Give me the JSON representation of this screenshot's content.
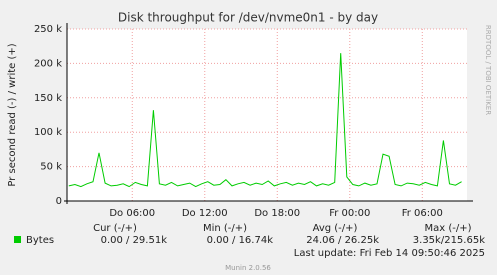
{
  "chart_data": {
    "type": "line",
    "title": "Disk throughput for /dev/nvme0n1 - by day",
    "y_label": "Pr second read (-) / write (+)",
    "side_label": "RRDTOOL / TOBI OETIKER",
    "grid": true,
    "ylim": [
      0,
      250000
    ],
    "yticks": [
      0,
      {
        "value": 50000,
        "label": "50 k"
      },
      {
        "value": 100000,
        "label": "100 k"
      },
      {
        "value": 150000,
        "label": "150 k"
      },
      {
        "value": 200000,
        "label": "200 k"
      },
      {
        "value": 250000,
        "label": "250 k"
      }
    ],
    "xlim": [
      0.6,
      33.7
    ],
    "xticks": [
      {
        "value": 6,
        "label": "Do 06:00"
      },
      {
        "value": 12,
        "label": "Do 12:00"
      },
      {
        "value": 18,
        "label": "Do 18:00"
      },
      {
        "value": 24,
        "label": "Fr 00:00"
      },
      {
        "value": 30,
        "label": "Fr 06:00"
      }
    ],
    "x": [
      0.75,
      1.25,
      1.75,
      2.25,
      2.75,
      3.25,
      3.75,
      4.25,
      4.75,
      5.25,
      5.75,
      6.25,
      6.75,
      7.25,
      7.75,
      8.25,
      8.75,
      9.25,
      9.75,
      10.25,
      10.75,
      11.25,
      11.75,
      12.25,
      12.75,
      13.25,
      13.75,
      14.25,
      14.75,
      15.25,
      15.75,
      16.25,
      16.75,
      17.25,
      17.75,
      18.25,
      18.75,
      19.25,
      19.75,
      20.25,
      20.75,
      21.25,
      21.75,
      22.25,
      22.75,
      23.25,
      23.75,
      24.25,
      24.75,
      25.25,
      25.75,
      26.25,
      26.75,
      27.25,
      27.75,
      28.25,
      28.75,
      29.25,
      29.75,
      30.25,
      30.75,
      31.25,
      31.75,
      32.25,
      32.75,
      33.25
    ],
    "series": [
      {
        "name": "Bytes",
        "color": "#00cc00",
        "values": [
          22000,
          24000,
          21000,
          25000,
          28000,
          70000,
          26000,
          22000,
          23000,
          25000,
          21000,
          27000,
          24000,
          22000,
          132000,
          25000,
          23000,
          27000,
          22000,
          24000,
          26000,
          21000,
          25000,
          28000,
          23000,
          24000,
          31000,
          22000,
          25000,
          27000,
          23000,
          26000,
          24000,
          29000,
          22000,
          25000,
          27000,
          23000,
          26000,
          24000,
          28000,
          22000,
          25000,
          23000,
          27000,
          215000,
          35000,
          24000,
          22000,
          26000,
          23000,
          25000,
          68000,
          65000,
          24000,
          22000,
          26000,
          25000,
          23000,
          27000,
          24000,
          22000,
          88000,
          25000,
          23000,
          28000
        ]
      }
    ],
    "legend": {
      "headers": [
        "Cur (-/+)",
        "Min (-/+)",
        "Avg (-/+)",
        "Max (-/+)"
      ],
      "row": [
        "0.00 / 29.51k",
        "0.00 / 16.74k",
        "24.06 / 26.25k",
        "3.35k/215.65k"
      ]
    },
    "last_update": "Last update: Fri Feb 14 09:50:46 2025",
    "footer": "Munin 2.0.56"
  }
}
